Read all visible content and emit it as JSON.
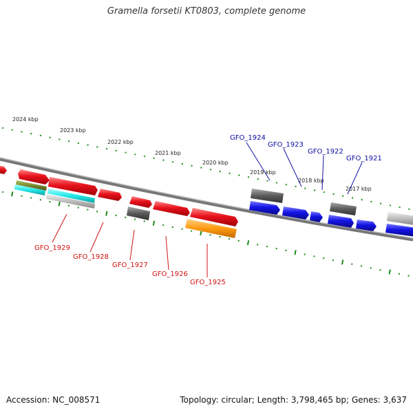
{
  "title": "Gramella forsetii KT0803, complete genome",
  "accession": "Accession: NC_008571",
  "stats": "Topology: circular; Length: 3,798,465 bp; Genes: 3,637",
  "kbp_labels": [
    "2024 kbp",
    "2023 kbp",
    "2022 kbp",
    "2021 kbp",
    "2020 kbp",
    "2019 kbp",
    "2018 kbp",
    "2017 kbp"
  ],
  "gene_labels_top": [
    "GFO_1924",
    "GFO_1923",
    "GFO_1922",
    "GFO_1921"
  ],
  "gene_labels_bottom": [
    "GFO_1929",
    "GFO_1928",
    "GFO_1927",
    "GFO_1926",
    "GFO_1925"
  ],
  "colors": {
    "backbone": "#808080",
    "tick": "#1a8a1a",
    "forward_gene": "#e8121c",
    "reverse_gene": "#1414e6",
    "gray_gene": "#6a6a6a",
    "light_gray_gene": "#bdbdbd",
    "cyan_gene": "#22e8e8",
    "olive_gene": "#7a8a30",
    "orange_gene": "#ff9a10",
    "top_label": "#0a0aa0",
    "bottom_label": "#d01010"
  }
}
